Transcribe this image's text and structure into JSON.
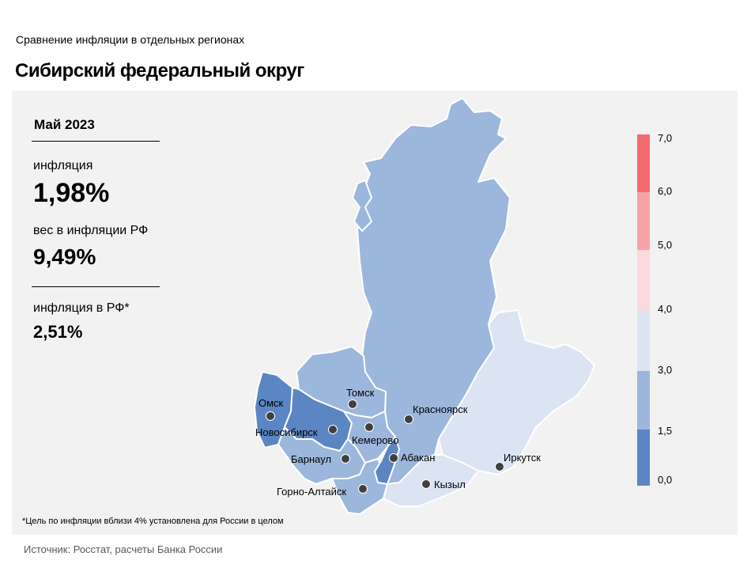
{
  "header": {
    "subtitle": "Сравнение  инфляции  в отдельных  регионах",
    "title": "Сибирский федеральный округ"
  },
  "stats": {
    "period": "Май 2023",
    "inflation_label": "инфляция",
    "inflation_value": "1,98%",
    "weight_label": "вес в инфляции  РФ",
    "weight_value": "9,49%",
    "rf_inflation_label": "инфляция  в РФ*",
    "rf_inflation_value": "2,51%"
  },
  "footnote": "*Цель по инфляции вблизи 4% установлена для России в целом",
  "source": "Источник: Росстат, расчеты Банка России",
  "legend": {
    "ticks": [
      "7,0",
      "6,0",
      "5,0",
      "4,0",
      "3,0",
      "1,5",
      "0,0"
    ],
    "bins": [
      {
        "from": 0.0,
        "to": 1.5,
        "color": "#5b86c3"
      },
      {
        "from": 1.5,
        "to": 3.0,
        "color": "#9cb7dc"
      },
      {
        "from": 3.0,
        "to": 4.0,
        "color": "#dbe4f3"
      },
      {
        "from": 4.0,
        "to": 5.0,
        "color": "#fadadd"
      },
      {
        "from": 5.0,
        "to": 6.0,
        "color": "#f7a3a6"
      },
      {
        "from": 6.0,
        "to": 7.0,
        "color": "#f26b6e"
      }
    ]
  },
  "map": {
    "border_color": "#ffffff",
    "regions": [
      {
        "id": "krasnoyarsk",
        "bin": "1,5–3,0"
      },
      {
        "id": "irkutsk",
        "bin": "3,0–4,0"
      },
      {
        "id": "tomsk",
        "bin": "1,5–3,0"
      },
      {
        "id": "omsk",
        "bin": "0,0–1,5"
      },
      {
        "id": "novosibirsk",
        "bin": "0,0–1,5"
      },
      {
        "id": "kemerovo",
        "bin": "1,5–3,0"
      },
      {
        "id": "altai-krai",
        "bin": "1,5–3,0"
      },
      {
        "id": "altai-republic",
        "bin": "1,5–3,0"
      },
      {
        "id": "khakassia",
        "bin": "0,0–1,5"
      },
      {
        "id": "tyva",
        "bin": "3,0–4,0"
      }
    ],
    "cities": [
      {
        "name": "Омск"
      },
      {
        "name": "Новосибирск"
      },
      {
        "name": "Томск"
      },
      {
        "name": "Кемерово"
      },
      {
        "name": "Барнаул"
      },
      {
        "name": "Горно-Алтайск"
      },
      {
        "name": "Абакан"
      },
      {
        "name": "Красноярск"
      },
      {
        "name": "Кызыл"
      },
      {
        "name": "Иркутск"
      }
    ]
  }
}
